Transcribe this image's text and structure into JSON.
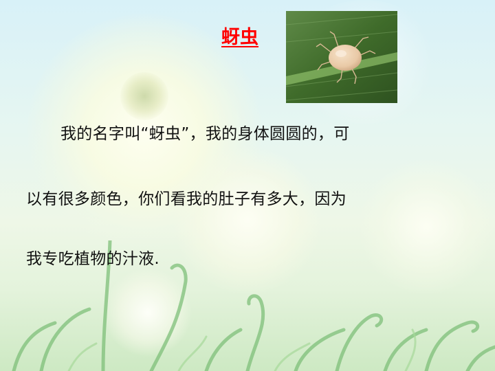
{
  "slide": {
    "title": "蚜虫",
    "lines": [
      "我的名字叫“蚜虫”，我的身体圆圆的，可",
      "以有很多颜色，你们看我的肚子有多大，因为",
      "我专吃植物的汁液."
    ]
  },
  "colors": {
    "title": "#ff0000",
    "text": "#111111",
    "leaf": "#3f6b2a",
    "aphid": "#e9c9a6"
  },
  "icons": {
    "photo": "aphid-photo-icon"
  }
}
